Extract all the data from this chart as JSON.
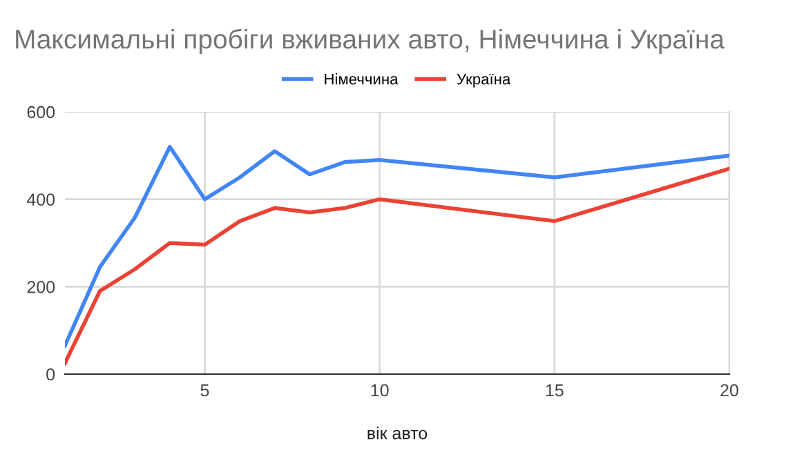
{
  "chart_data": {
    "type": "line",
    "title": "Максимальні пробіги вживаних авто, Німеччина і Україна",
    "xlabel": "вік авто",
    "x": [
      1,
      2,
      3,
      4,
      5,
      6,
      7,
      8,
      9,
      10,
      15,
      20
    ],
    "series": [
      {
        "name": "Німеччина",
        "color": "#4285f4",
        "values": [
          65,
          245,
          358,
          520,
          400,
          450,
          510,
          457,
          485,
          490,
          450,
          500
        ]
      },
      {
        "name": "Україна",
        "color": "#ea4335",
        "values": [
          25,
          190,
          240,
          300,
          296,
          350,
          380,
          370,
          380,
          400,
          350,
          470
        ]
      }
    ],
    "xlim": [
      1,
      20
    ],
    "xticks": [
      5,
      10,
      15,
      20
    ],
    "ylim": [
      0,
      600
    ],
    "yticks": [
      0,
      200,
      400,
      600
    ],
    "grid": true,
    "legend": "top",
    "marker": "none",
    "line_style": "solid"
  }
}
